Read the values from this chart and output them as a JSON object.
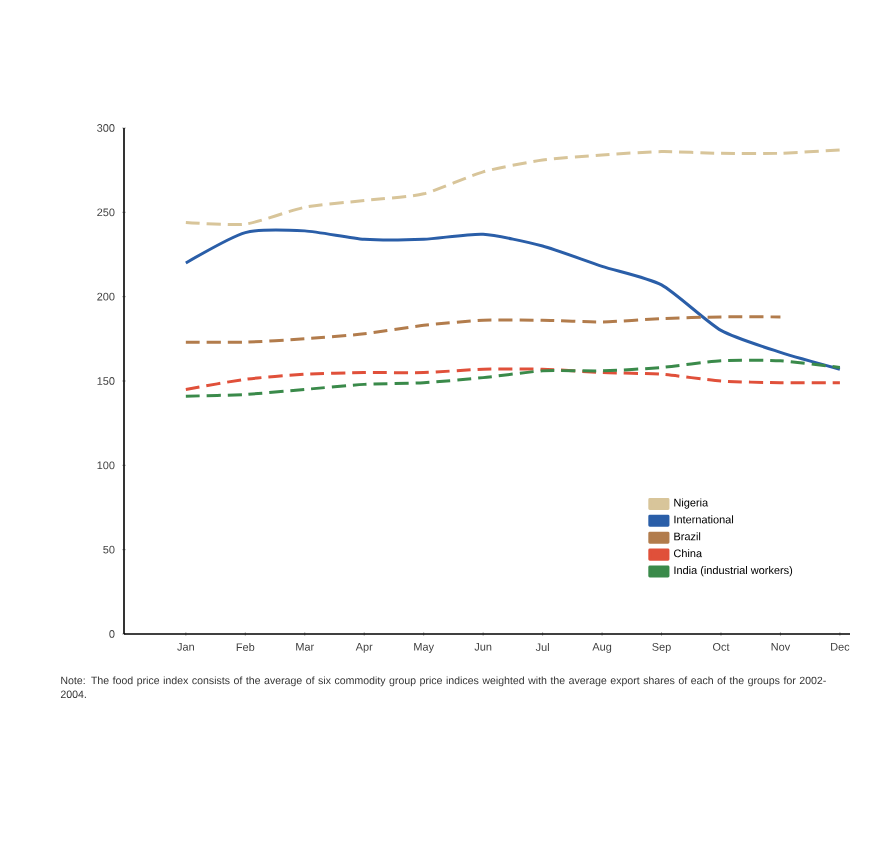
{
  "chart_data": {
    "type": "line",
    "categories": [
      "Jan",
      "Feb",
      "Mar",
      "Apr",
      "May",
      "Jun",
      "Jul",
      "Aug",
      "Sep",
      "Oct",
      "Nov",
      "Dec"
    ],
    "series": [
      {
        "name": "Nigeria",
        "color": "#d8c59a",
        "line_style": "dashed",
        "values": [
          244,
          243,
          253,
          257,
          261,
          274,
          281,
          284,
          286,
          285,
          285,
          287
        ]
      },
      {
        "name": "International",
        "color": "#2a5ea8",
        "line_style": "solid",
        "values": [
          220,
          238,
          239,
          234,
          234,
          237,
          230,
          218,
          207,
          180,
          167,
          157
        ]
      },
      {
        "name": "Brazil",
        "color": "#b27c4c",
        "line_style": "dashed",
        "values": [
          173,
          173,
          175,
          178,
          183,
          186,
          186,
          185,
          187,
          188,
          188,
          null
        ]
      },
      {
        "name": "China",
        "color": "#e0503a",
        "line_style": "dashed",
        "values": [
          145,
          151,
          154,
          155,
          155,
          157,
          157,
          155,
          154,
          150,
          149,
          149
        ]
      },
      {
        "name": "India (industrial workers)",
        "color": "#3a8a4a",
        "line_style": "dashed",
        "values": [
          141,
          142,
          145,
          148,
          149,
          152,
          156,
          156,
          158,
          162,
          162,
          158
        ]
      }
    ],
    "ylim": [
      0,
      300
    ],
    "yticks": [
      0,
      50,
      100,
      150,
      200,
      250,
      300
    ],
    "grid": false,
    "legend": "bottom right",
    "annotations": [
      "Note: The food price index consists of the average of six commodity group price indices weighted with the average export shares of each of the groups for 2002-2004."
    ]
  }
}
